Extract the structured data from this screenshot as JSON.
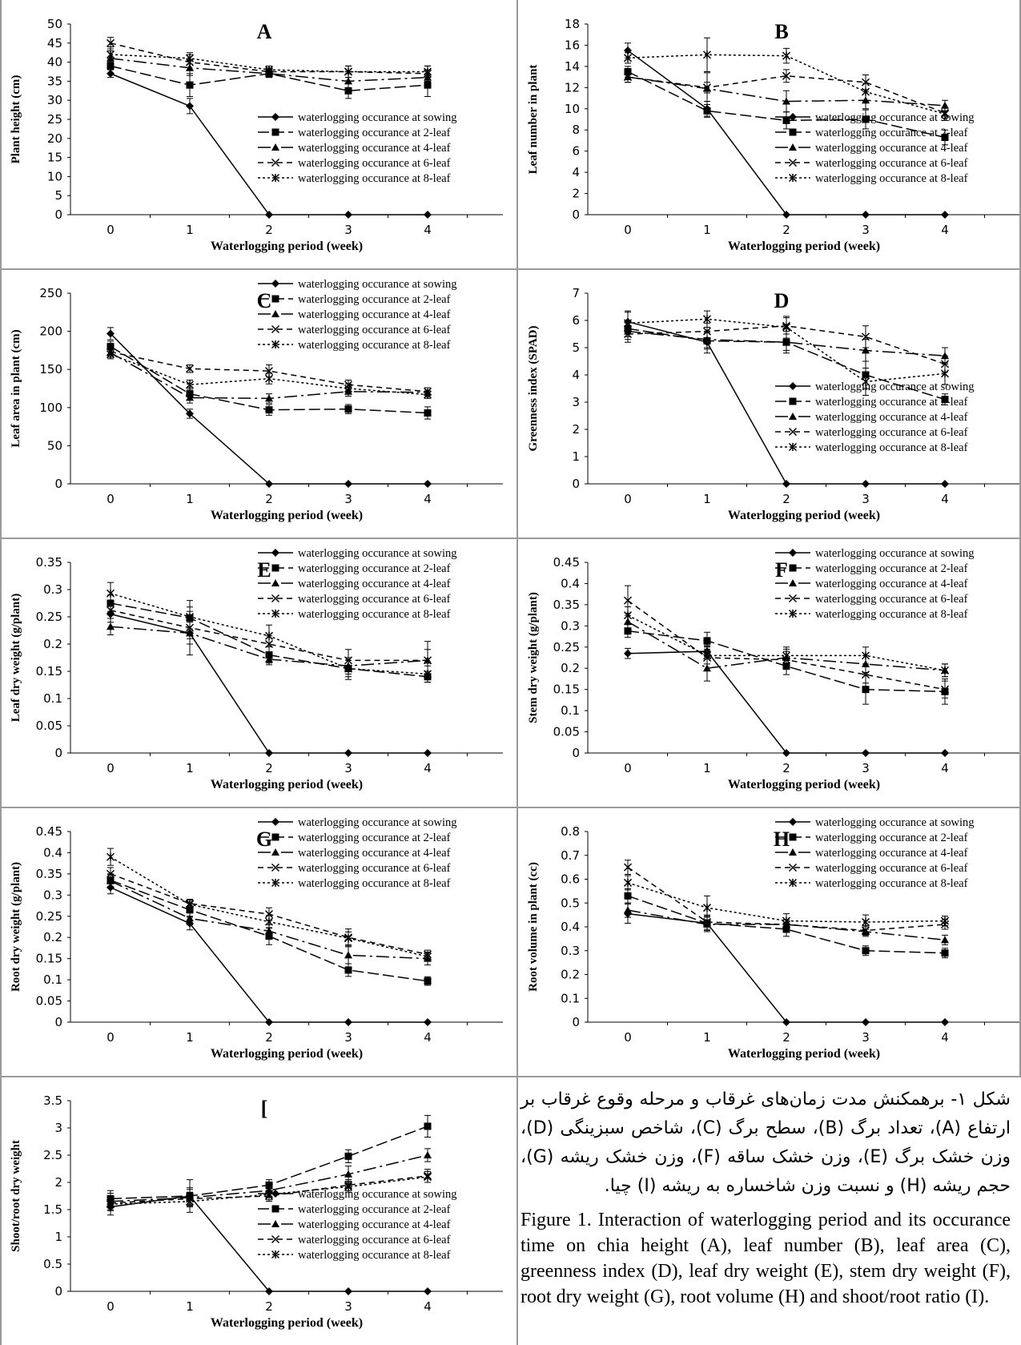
{
  "caption": {
    "persian": "شکل ۱- برهمکنش مدت زمان‌های غرقاب و مرحله وقوع غرقاب بر ارتفاع (A)، تعداد برگ (B)، سطح برگ (C)، شاخص سبزینگی (D)، وزن خشک برگ (E)، وزن خشک ساقه (F)، وزن خشک ریشه (G)، حجم ریشه (H) و نسبت وزن شاخساره به ریشه (I) چیا.",
    "english": "Figure 1. Interaction of waterlogging period and its occurance time on chia height (A), leaf number (B), leaf area (C), greenness index (D), leaf dry weight (E), stem dry weight (F), root dry weight (G), root volume (H) and shoot/root ratio (I)."
  },
  "chart_data": [
    {
      "id": "A",
      "type": "line",
      "panel_letter": "A",
      "xlabel": "Waterlogging period (week)",
      "ylabel": "Plant height (cm)",
      "x": [
        0,
        1,
        2,
        3,
        4
      ],
      "ylim": [
        0,
        50
      ],
      "ytick_step": 5,
      "ytick_decimals": 0,
      "legend": "right-lower",
      "series": [
        {
          "name": "waterlogging occurance at sowing",
          "values": [
            37,
            28.5,
            0,
            0,
            0
          ],
          "errors": [
            1,
            2,
            0,
            0,
            0
          ]
        },
        {
          "name": "waterlogging occurance at 2-leaf",
          "values": [
            39,
            34,
            37,
            32.5,
            34
          ],
          "errors": [
            2,
            3,
            1,
            2,
            3
          ]
        },
        {
          "name": "waterlogging occurance at 4-leaf",
          "values": [
            41,
            38.5,
            37,
            35,
            36
          ],
          "errors": [
            2,
            2,
            1,
            2,
            2
          ]
        },
        {
          "name": "waterlogging occurance at 6-leaf",
          "values": [
            45,
            40,
            37.5,
            37.5,
            37
          ],
          "errors": [
            1.5,
            2,
            1,
            1.5,
            2
          ]
        },
        {
          "name": "waterlogging occurance at 8-leaf",
          "values": [
            42,
            41,
            38,
            37.5,
            37.5
          ],
          "errors": [
            2,
            1.5,
            1,
            1.5,
            1.5
          ]
        }
      ]
    },
    {
      "id": "B",
      "type": "line",
      "panel_letter": "B",
      "xlabel": "Waterlogging period (week)",
      "ylabel": "Leaf number in plant",
      "x": [
        0,
        1,
        2,
        3,
        4
      ],
      "ylim": [
        0,
        18
      ],
      "ytick_step": 2,
      "ytick_decimals": 0,
      "legend": "right-lower",
      "series": [
        {
          "name": "waterlogging occurance at sowing",
          "values": [
            15.5,
            10,
            0,
            0,
            0
          ],
          "errors": [
            0.7,
            0.7,
            0,
            0,
            0
          ]
        },
        {
          "name": "waterlogging occurance at 2-leaf",
          "values": [
            13.5,
            9.8,
            8.9,
            9,
            7.3
          ],
          "errors": [
            0.5,
            0.6,
            0.8,
            0.9,
            0.7
          ]
        },
        {
          "name": "waterlogging occurance at 4-leaf",
          "values": [
            13,
            11.9,
            10.7,
            10.8,
            10.3
          ],
          "errors": [
            0.5,
            1.5,
            1,
            0.8,
            0.5
          ]
        },
        {
          "name": "waterlogging occurance at 6-leaf",
          "values": [
            13,
            12,
            13.1,
            12.5,
            9.6
          ],
          "errors": [
            0.5,
            0.5,
            0.6,
            0.7,
            0.5
          ]
        },
        {
          "name": "waterlogging occurance at 8-leaf",
          "values": [
            14.8,
            15.1,
            15,
            11.6,
            9.5
          ],
          "errors": [
            0.5,
            1.6,
            0.7,
            0.8,
            0.6
          ]
        }
      ]
    },
    {
      "id": "C",
      "type": "line",
      "panel_letter": "C",
      "xlabel": "Waterlogging period (week)",
      "ylabel": "Leaf area in plant (cm)",
      "x": [
        0,
        1,
        2,
        3,
        4
      ],
      "ylim": [
        0,
        250
      ],
      "ytick_step": 50,
      "ytick_decimals": 0,
      "legend": "right-upper",
      "series": [
        {
          "name": "waterlogging occurance at sowing",
          "values": [
            197,
            92,
            0,
            0,
            0
          ],
          "errors": [
            8,
            6,
            0,
            0,
            0
          ]
        },
        {
          "name": "waterlogging occurance at 2-leaf",
          "values": [
            180,
            118,
            97,
            98,
            93
          ],
          "errors": [
            7,
            8,
            7,
            6,
            8
          ]
        },
        {
          "name": "waterlogging occurance at 4-leaf",
          "values": [
            172,
            113,
            112,
            121,
            120
          ],
          "errors": [
            6,
            7,
            6,
            6,
            6
          ]
        },
        {
          "name": "waterlogging occurance at 6-leaf",
          "values": [
            173,
            151,
            148,
            130,
            121
          ],
          "errors": [
            7,
            5,
            8,
            6,
            5
          ]
        },
        {
          "name": "waterlogging occurance at 8-leaf",
          "values": [
            170,
            130,
            138,
            125,
            117
          ],
          "errors": [
            6,
            6,
            7,
            6,
            5
          ]
        }
      ]
    },
    {
      "id": "D",
      "type": "line",
      "panel_letter": "D",
      "xlabel": "Waterlogging period (week)",
      "ylabel": "Greenness index (SPAD)",
      "x": [
        0,
        1,
        2,
        3,
        4
      ],
      "ylim": [
        0,
        7
      ],
      "ytick_step": 1,
      "ytick_decimals": 0,
      "legend": "right-lower",
      "series": [
        {
          "name": "waterlogging occurance at sowing",
          "values": [
            5.95,
            5.2,
            0,
            0,
            0
          ],
          "errors": [
            0.4,
            0.4,
            0,
            0,
            0
          ]
        },
        {
          "name": "waterlogging occurance at 2-leaf",
          "values": [
            5.7,
            5.25,
            5.2,
            4.0,
            3.1
          ],
          "errors": [
            0.3,
            0.3,
            0.4,
            0.5,
            0.2
          ]
        },
        {
          "name": "waterlogging occurance at 4-leaf",
          "values": [
            5.6,
            5.3,
            5.2,
            4.9,
            4.7
          ],
          "errors": [
            0.3,
            0.3,
            0.3,
            0.4,
            0.3
          ]
        },
        {
          "name": "waterlogging occurance at 6-leaf",
          "values": [
            5.5,
            5.6,
            5.8,
            5.4,
            4.4
          ],
          "errors": [
            0.3,
            0.3,
            0.3,
            0.4,
            0.3
          ]
        },
        {
          "name": "waterlogging occurance at 8-leaf",
          "values": [
            5.9,
            6.05,
            5.75,
            3.75,
            4.05
          ],
          "errors": [
            0.4,
            0.3,
            0.4,
            0.5,
            0.4
          ]
        }
      ]
    },
    {
      "id": "E",
      "type": "line",
      "panel_letter": "E",
      "xlabel": "Waterlogging period (week)",
      "ylabel": "Leaf dry weight (g/plant)",
      "x": [
        0,
        1,
        2,
        3,
        4
      ],
      "ylim": [
        0,
        0.35
      ],
      "ytick_step": 0.05,
      "ytick_decimals": 2,
      "legend": "right-upper",
      "series": [
        {
          "name": "waterlogging occurance at sowing",
          "values": [
            0.255,
            0.22,
            0,
            0,
            0
          ],
          "errors": [
            0.015,
            0.04,
            0,
            0,
            0
          ]
        },
        {
          "name": "waterlogging occurance at 2-leaf",
          "values": [
            0.275,
            0.248,
            0.18,
            0.155,
            0.14
          ],
          "errors": [
            0.015,
            0.02,
            0.015,
            0.02,
            0.01
          ]
        },
        {
          "name": "waterlogging occurance at 4-leaf",
          "values": [
            0.232,
            0.22,
            0.172,
            0.16,
            0.17
          ],
          "errors": [
            0.015,
            0.02,
            0.01,
            0.015,
            0.035
          ]
        },
        {
          "name": "waterlogging occurance at 6-leaf",
          "values": [
            0.262,
            0.23,
            0.2,
            0.17,
            0.17
          ],
          "errors": [
            0.015,
            0.02,
            0.015,
            0.02,
            0.02
          ]
        },
        {
          "name": "waterlogging occurance at 8-leaf",
          "values": [
            0.293,
            0.25,
            0.215,
            0.155,
            0.145
          ],
          "errors": [
            0.02,
            0.03,
            0.02,
            0.015,
            0.015
          ]
        }
      ]
    },
    {
      "id": "F",
      "type": "line",
      "panel_letter": "F",
      "xlabel": "Waterlogging period (week)",
      "ylabel": "Stem dry weight (g/plant)",
      "x": [
        0,
        1,
        2,
        3,
        4
      ],
      "ylim": [
        0,
        0.45
      ],
      "ytick_step": 0.05,
      "ytick_decimals": 2,
      "legend": "right-upper",
      "series": [
        {
          "name": "waterlogging occurance at sowing",
          "values": [
            0.235,
            0.24,
            0,
            0,
            0
          ],
          "errors": [
            0.012,
            0.012,
            0,
            0,
            0
          ]
        },
        {
          "name": "waterlogging occurance at 2-leaf",
          "values": [
            0.288,
            0.265,
            0.205,
            0.15,
            0.145
          ],
          "errors": [
            0.015,
            0.02,
            0.02,
            0.035,
            0.03
          ]
        },
        {
          "name": "waterlogging occurance at 4-leaf",
          "values": [
            0.31,
            0.2,
            0.225,
            0.21,
            0.195
          ],
          "errors": [
            0.02,
            0.03,
            0.02,
            0.02,
            0.015
          ]
        },
        {
          "name": "waterlogging occurance at 6-leaf",
          "values": [
            0.36,
            0.225,
            0.22,
            0.185,
            0.15
          ],
          "errors": [
            0.035,
            0.03,
            0.02,
            0.02,
            0.02
          ]
        },
        {
          "name": "waterlogging occurance at 8-leaf",
          "values": [
            0.325,
            0.23,
            0.23,
            0.23,
            0.195
          ],
          "errors": [
            0.02,
            0.02,
            0.02,
            0.02,
            0.015
          ]
        }
      ]
    },
    {
      "id": "G",
      "type": "line",
      "panel_letter": "G",
      "xlabel": "Waterlogging period (week)",
      "ylabel": "Root dry weight (g/plant)",
      "x": [
        0,
        1,
        2,
        3,
        4
      ],
      "ylim": [
        0,
        0.45
      ],
      "ytick_step": 0.05,
      "ytick_decimals": 2,
      "legend": "right-upper",
      "series": [
        {
          "name": "waterlogging occurance at sowing",
          "values": [
            0.318,
            0.233,
            0,
            0,
            0
          ],
          "errors": [
            0.015,
            0.015,
            0,
            0,
            0
          ]
        },
        {
          "name": "waterlogging occurance at 2-leaf",
          "values": [
            0.335,
            0.265,
            0.203,
            0.123,
            0.097
          ],
          "errors": [
            0.015,
            0.015,
            0.02,
            0.015,
            0.01
          ]
        },
        {
          "name": "waterlogging occurance at 4-leaf",
          "values": [
            0.333,
            0.245,
            0.215,
            0.158,
            0.15
          ],
          "errors": [
            0.015,
            0.015,
            0.015,
            0.02,
            0.015
          ]
        },
        {
          "name": "waterlogging occurance at 6-leaf",
          "values": [
            0.35,
            0.28,
            0.255,
            0.2,
            0.16
          ],
          "errors": [
            0.015,
            0.01,
            0.015,
            0.02,
            0.01
          ]
        },
        {
          "name": "waterlogging occurance at 8-leaf",
          "values": [
            0.39,
            0.278,
            0.237,
            0.198,
            0.155
          ],
          "errors": [
            0.02,
            0.01,
            0.015,
            0.015,
            0.01
          ]
        }
      ]
    },
    {
      "id": "H",
      "type": "line",
      "panel_letter": "H",
      "xlabel": "Waterlogging period (week)",
      "ylabel": "Root volume in plant (cc)",
      "x": [
        0,
        1,
        2,
        3,
        4
      ],
      "ylim": [
        0,
        0.8
      ],
      "ytick_step": 0.1,
      "ytick_decimals": 1,
      "legend": "right-upper",
      "series": [
        {
          "name": "waterlogging occurance at sowing",
          "values": [
            0.455,
            0.415,
            0,
            0,
            0
          ],
          "errors": [
            0.04,
            0.03,
            0,
            0,
            0
          ]
        },
        {
          "name": "waterlogging occurance at 2-leaf",
          "values": [
            0.53,
            0.415,
            0.39,
            0.3,
            0.29
          ],
          "errors": [
            0.03,
            0.03,
            0.03,
            0.02,
            0.02
          ]
        },
        {
          "name": "waterlogging occurance at 4-leaf",
          "values": [
            0.47,
            0.41,
            0.41,
            0.38,
            0.345
          ],
          "errors": [
            0.03,
            0.03,
            0.02,
            0.02,
            0.02
          ]
        },
        {
          "name": "waterlogging occurance at 6-leaf",
          "values": [
            0.65,
            0.42,
            0.41,
            0.385,
            0.41
          ],
          "errors": [
            0.03,
            0.03,
            0.02,
            0.02,
            0.02
          ]
        },
        {
          "name": "waterlogging occurance at 8-leaf",
          "values": [
            0.585,
            0.48,
            0.425,
            0.42,
            0.425
          ],
          "errors": [
            0.03,
            0.05,
            0.03,
            0.03,
            0.02
          ]
        }
      ]
    },
    {
      "id": "I",
      "type": "line",
      "panel_letter": "[",
      "xlabel": "Waterlogging period (week)",
      "ylabel": "Shoot/root dry weight",
      "x": [
        0,
        1,
        2,
        3,
        4
      ],
      "ylim": [
        0,
        3.5
      ],
      "ytick_step": 0.5,
      "ytick_decimals": 1,
      "legend": "right-lower",
      "series": [
        {
          "name": "waterlogging occurance at sowing",
          "values": [
            1.55,
            1.75,
            0,
            0,
            0
          ],
          "errors": [
            0.15,
            0.15,
            0,
            0,
            0
          ]
        },
        {
          "name": "waterlogging occurance at 2-leaf",
          "values": [
            1.7,
            1.75,
            1.95,
            2.48,
            3.03
          ],
          "errors": [
            0.15,
            0.3,
            0.1,
            0.12,
            0.2
          ]
        },
        {
          "name": "waterlogging occurance at 4-leaf",
          "values": [
            1.65,
            1.72,
            1.85,
            2.15,
            2.5
          ],
          "errors": [
            0.15,
            0.15,
            0.1,
            0.15,
            0.12
          ]
        },
        {
          "name": "waterlogging occurance at 6-leaf",
          "values": [
            1.62,
            1.7,
            1.75,
            1.95,
            2.12
          ],
          "errors": [
            0.12,
            0.12,
            0.1,
            0.1,
            0.12
          ]
        },
        {
          "name": "waterlogging occurance at 8-leaf",
          "values": [
            1.6,
            1.65,
            1.78,
            1.92,
            2.1
          ],
          "errors": [
            0.12,
            0.1,
            0.1,
            0.1,
            0.1
          ]
        }
      ]
    }
  ]
}
